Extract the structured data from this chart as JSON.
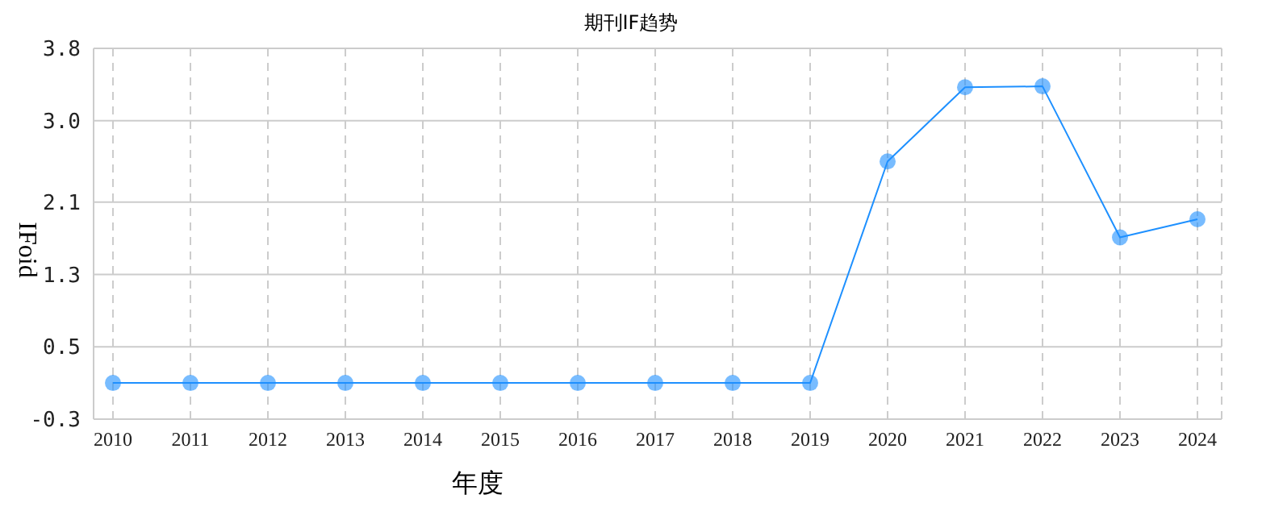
{
  "chart_data": {
    "type": "line",
    "title": "期刊IF趋势",
    "xlabel": "年度",
    "ylabel": "IFoid",
    "categories": [
      "2010",
      "2011",
      "2012",
      "2013",
      "2014",
      "2015",
      "2016",
      "2017",
      "2018",
      "2019",
      "2020",
      "2021",
      "2022",
      "2023",
      "2024"
    ],
    "series": [
      {
        "color": "#1e90ff",
        "values": [
          0.1,
          0.1,
          0.1,
          0.1,
          0.1,
          0.1,
          0.1,
          0.1,
          0.1,
          0.1,
          2.55,
          3.37,
          3.38,
          1.71,
          1.91
        ]
      }
    ],
    "ylim": [
      -0.3,
      3.8
    ],
    "yticks": [
      -0.3,
      0.5,
      1.3,
      2.1,
      {
        "value": 3,
        "label": "3.0"
      },
      3.8
    ],
    "grid": true,
    "marker": "circle",
    "line_style": "solid"
  }
}
